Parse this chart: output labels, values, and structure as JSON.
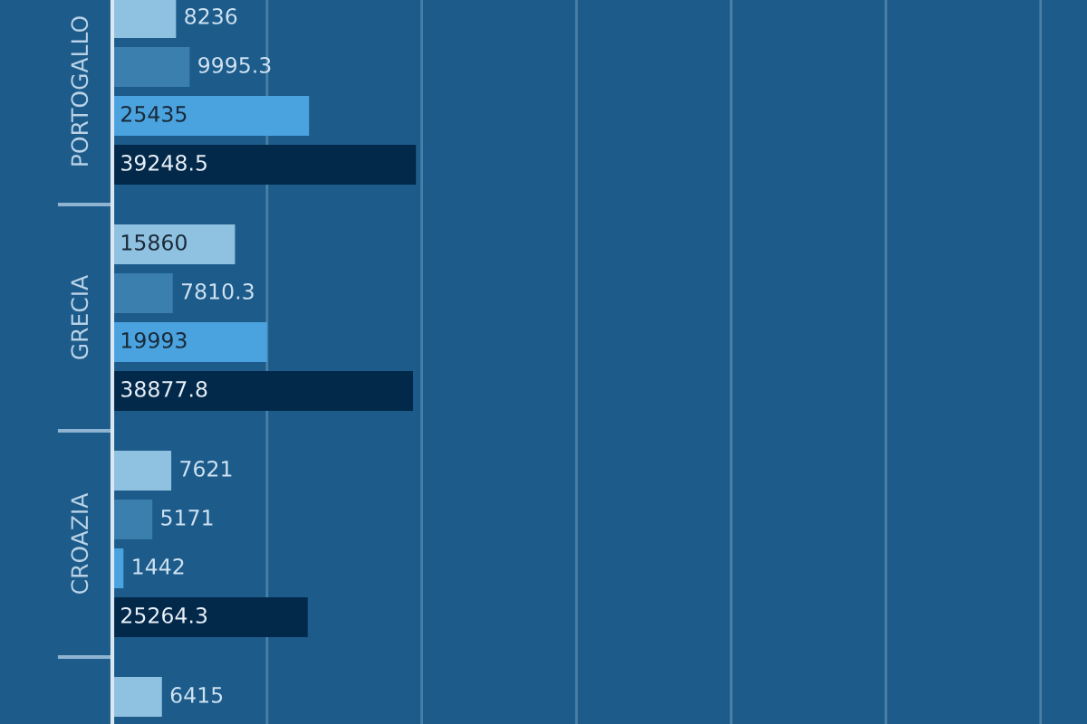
{
  "chart_data": {
    "type": "bar",
    "orientation": "horizontal",
    "categories": [
      "PORTOGALLO",
      "GRECIA",
      "CROAZIA",
      null
    ],
    "series": [
      {
        "color": "#8fc1e0",
        "values": [
          8236,
          15860,
          7621,
          6415
        ]
      },
      {
        "color": "#3a7fae",
        "values": [
          9995.3,
          7810.3,
          5171,
          null
        ]
      },
      {
        "color": "#4aa3df",
        "values": [
          25435,
          19993,
          1442,
          null
        ]
      },
      {
        "color": "#03294a",
        "values": [
          39248.5,
          38877.8,
          25264.3,
          null
        ]
      }
    ],
    "xlim": [
      0,
      126000
    ],
    "xticks": [
      {
        "value": 20000,
        "label": null
      },
      {
        "value": 40000,
        "label": null
      },
      {
        "value": 60000,
        "label": null
      },
      {
        "value": 80000,
        "label": null
      },
      {
        "value": 100000,
        "label": null
      },
      {
        "value": 120000,
        "label": null
      }
    ],
    "grid": "x",
    "data_labels": true,
    "tick_labels": "y"
  }
}
